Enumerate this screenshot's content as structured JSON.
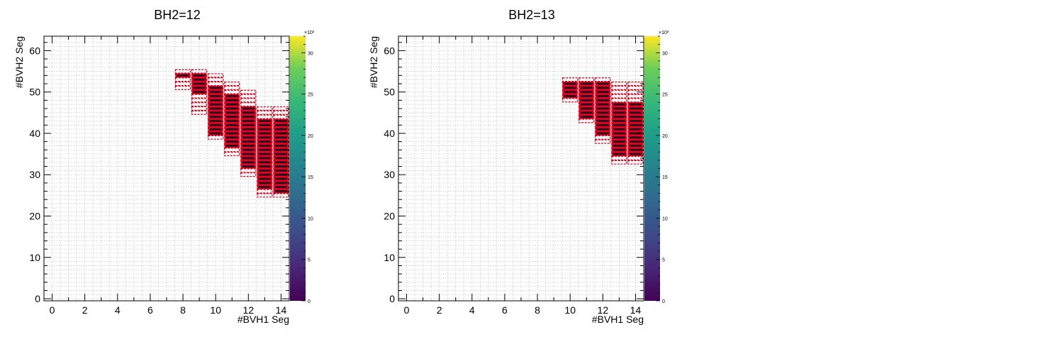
{
  "chart_data": [
    {
      "type": "heatmap",
      "title": "BH2=12",
      "xlabel": "#BVH1 Seg",
      "ylabel": "#BVH2 Seg",
      "xlim": [
        -0.5,
        14.5
      ],
      "ylim": [
        -0.5,
        63.5
      ],
      "x_ticks": [
        "0",
        "2",
        "4",
        "6",
        "8",
        "10",
        "12",
        "14"
      ],
      "y_ticks": [
        "0",
        "10",
        "20",
        "30",
        "40",
        "50",
        "60"
      ],
      "z_ticks": [
        "0",
        "5",
        "10",
        "15",
        "20",
        "25",
        "30"
      ],
      "z_multiplier": "×10³",
      "zlim": [
        0,
        32
      ],
      "grid": true,
      "columns": [
        {
          "x": 8,
          "solid": [
            54,
            54
          ],
          "dashed": [
            51,
            55
          ]
        },
        {
          "x": 9,
          "solid": [
            50,
            54
          ],
          "dashed": [
            45,
            55
          ]
        },
        {
          "x": 10,
          "solid": [
            40,
            51
          ],
          "dashed": [
            39,
            54
          ]
        },
        {
          "x": 11,
          "solid": [
            37,
            49
          ],
          "dashed": [
            35,
            52
          ]
        },
        {
          "x": 12,
          "solid": [
            32,
            46
          ],
          "dashed": [
            30,
            50
          ]
        },
        {
          "x": 13,
          "solid": [
            27,
            43
          ],
          "dashed": [
            25,
            46
          ]
        },
        {
          "x": 14,
          "solid": [
            26,
            43
          ],
          "dashed": [
            25,
            46
          ]
        }
      ]
    },
    {
      "type": "heatmap",
      "title": "BH2=13",
      "xlabel": "#BVH1 Seg",
      "ylabel": "#BVH2 Seg",
      "xlim": [
        -0.5,
        14.5
      ],
      "ylim": [
        -0.5,
        63.5
      ],
      "x_ticks": [
        "0",
        "2",
        "4",
        "6",
        "8",
        "10",
        "12",
        "14"
      ],
      "y_ticks": [
        "0",
        "10",
        "20",
        "30",
        "40",
        "50",
        "60"
      ],
      "z_ticks": [
        "0",
        "5",
        "10",
        "15",
        "20",
        "25",
        "30"
      ],
      "z_multiplier": "×10³",
      "zlim": [
        0,
        32
      ],
      "grid": true,
      "columns": [
        {
          "x": 10,
          "solid": [
            49,
            52
          ],
          "dashed": [
            48,
            53
          ]
        },
        {
          "x": 11,
          "solid": [
            44,
            52
          ],
          "dashed": [
            43,
            53
          ]
        },
        {
          "x": 12,
          "solid": [
            40,
            52
          ],
          "dashed": [
            38,
            53
          ]
        },
        {
          "x": 13,
          "solid": [
            35,
            47
          ],
          "dashed": [
            33,
            52
          ]
        },
        {
          "x": 14,
          "solid": [
            35,
            47
          ],
          "dashed": [
            33,
            52
          ]
        }
      ]
    }
  ],
  "colors": {
    "accent": "#e8001c",
    "accent_dark": "#c0001a",
    "fill_dark": "#2a1020",
    "grid": "#c8c8c8",
    "axis": "#000000"
  }
}
